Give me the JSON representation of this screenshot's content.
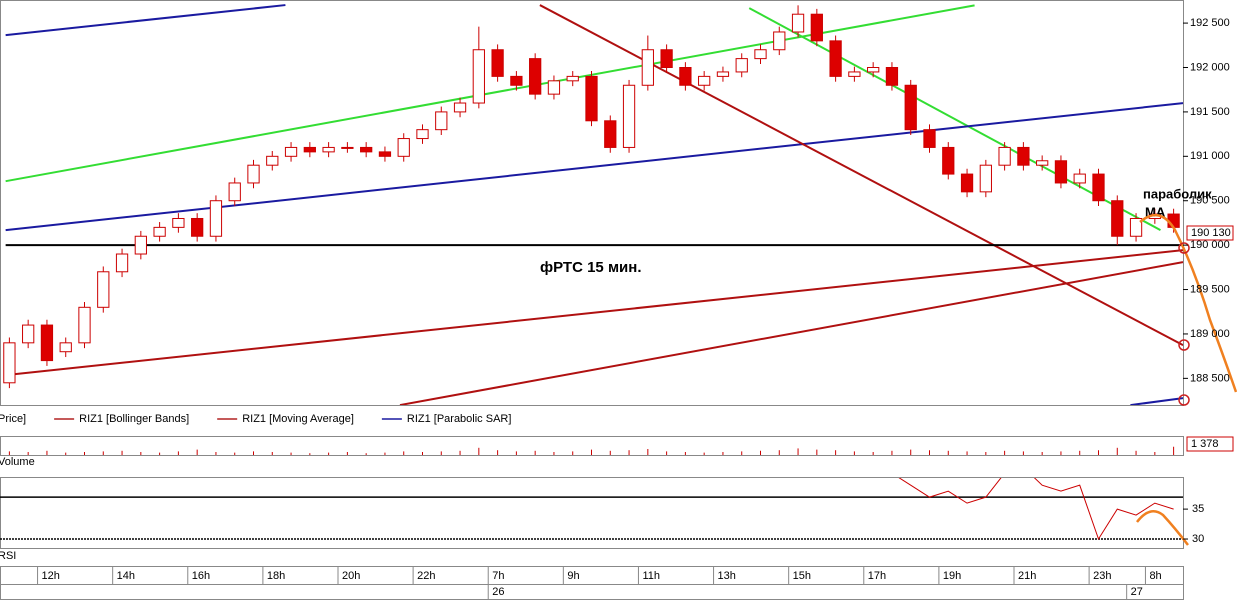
{
  "chart_data": {
    "type": "candlestick",
    "title": "фРТС   15 мин.",
    "annotation": [
      "параболик",
      "MA"
    ],
    "price_label": "190 130",
    "legend": [
      "Price]",
      "RIZ1 [Bollinger Bands]",
      "RIZ1 [Moving Average]",
      "RIZ1 [Parabolic SAR]"
    ],
    "legend_colors": [
      "#000000",
      "#b22222",
      "#b22222",
      "#1a1aa0"
    ],
    "up_color": "#ffffff",
    "down_color": "#dd0000",
    "candle_edge": "#cc0000",
    "categories": [
      null,
      null,
      "12h",
      null,
      null,
      null,
      "14h",
      null,
      null,
      null,
      "16h",
      null,
      null,
      null,
      "18h",
      null,
      null,
      null,
      "20h",
      null,
      null,
      null,
      "22h",
      null,
      null,
      null,
      "7h",
      null,
      null,
      null,
      "9h",
      null,
      null,
      null,
      "11h",
      null,
      null,
      null,
      "13h",
      null,
      null,
      null,
      "15h",
      null,
      null,
      null,
      "17h",
      null,
      null,
      null,
      "19h",
      null,
      null,
      null,
      "21h",
      null,
      null,
      null,
      "23h",
      null,
      null,
      "8h",
      null
    ],
    "dates": [
      {
        "index": 26,
        "label": "26"
      },
      {
        "index": 60,
        "label": "27"
      }
    ],
    "open": [
      188450,
      188900,
      189100,
      188800,
      188900,
      189300,
      189700,
      189900,
      190100,
      190200,
      190300,
      190100,
      190500,
      190700,
      190900,
      191000,
      191100,
      191050,
      191100,
      191100,
      191050,
      191000,
      191200,
      191300,
      191500,
      191600,
      192200,
      191900,
      192100,
      191700,
      191850,
      191900,
      191400,
      191100,
      191800,
      192200,
      192000,
      191800,
      191900,
      191950,
      192100,
      192200,
      192400,
      192600,
      192300,
      191900,
      191950,
      192000,
      191800,
      191300,
      191100,
      190800,
      190600,
      190900,
      191100,
      190900,
      190950,
      190700,
      190800,
      190500,
      190100,
      190300,
      190350
    ],
    "high": [
      188960,
      189160,
      189160,
      188960,
      189360,
      189760,
      189960,
      190160,
      190260,
      190360,
      190360,
      190560,
      190760,
      190960,
      191060,
      191160,
      191160,
      191160,
      191160,
      191160,
      191110,
      191260,
      191360,
      191560,
      191660,
      192460,
      192260,
      191960,
      192160,
      191910,
      191960,
      191960,
      191460,
      191860,
      192360,
      192260,
      192060,
      191960,
      192010,
      192160,
      192260,
      192460,
      192700,
      192660,
      192360,
      192010,
      192060,
      192060,
      191860,
      191360,
      191160,
      190860,
      190960,
      191160,
      191160,
      191010,
      191010,
      190860,
      190860,
      190560,
      190360,
      190410,
      190410
    ],
    "low": [
      188390,
      188840,
      188640,
      188740,
      188840,
      189240,
      189640,
      189840,
      190040,
      190140,
      190040,
      190040,
      190440,
      190640,
      190840,
      190940,
      190990,
      190990,
      191040,
      190990,
      190940,
      190940,
      191140,
      191240,
      191440,
      191540,
      191840,
      191740,
      191640,
      191640,
      191790,
      191340,
      191040,
      191040,
      191740,
      191940,
      191740,
      191740,
      191840,
      191890,
      192040,
      192140,
      192340,
      192240,
      191840,
      191840,
      191890,
      191740,
      191240,
      191040,
      190740,
      190540,
      190540,
      190840,
      190840,
      190840,
      190640,
      190640,
      190440,
      190000,
      190040,
      190240,
      190140
    ],
    "close": [
      188900,
      189100,
      188700,
      188900,
      189300,
      189700,
      189900,
      190100,
      190200,
      190300,
      190100,
      190500,
      190700,
      190900,
      191000,
      191100,
      191050,
      191100,
      191100,
      191050,
      191000,
      191200,
      191300,
      191500,
      191600,
      192200,
      191900,
      191800,
      191700,
      191850,
      191900,
      191400,
      191100,
      191800,
      192200,
      192000,
      191800,
      191900,
      191950,
      192100,
      192200,
      192400,
      192600,
      192300,
      191900,
      191950,
      192000,
      191800,
      191300,
      191100,
      190800,
      190600,
      190900,
      191100,
      190900,
      190950,
      190700,
      190800,
      190500,
      190100,
      190300,
      190350,
      190200
    ],
    "ylim": [
      188200,
      192760
    ],
    "yticks": [
      {
        "value": 188500,
        "label": "188 500"
      },
      {
        "value": 189000,
        "label": "189 000"
      },
      {
        "value": 189500,
        "label": "189 500"
      },
      {
        "value": 190000,
        "label": "190 000"
      },
      {
        "value": 190500,
        "label": "190 500"
      },
      {
        "value": 191000,
        "label": "191 000"
      },
      {
        "value": 191500,
        "label": "191 500"
      },
      {
        "value": 192000,
        "label": "192 000"
      },
      {
        "value": 192500,
        "label": "192 500"
      }
    ],
    "trendlines": [
      {
        "color": "#33dd33",
        "x": [
          -0.2,
          51.4
        ],
        "y": [
          190720,
          192700
        ]
      },
      {
        "color": "#33dd33",
        "x": [
          39.4,
          61.3
        ],
        "y": [
          192669,
          190169
        ]
      },
      {
        "color": "#1a1aa0",
        "x": [
          -0.2,
          14.7
        ],
        "y": [
          192365,
          192703
        ]
      },
      {
        "color": "#1a1aa0",
        "x": [
          -0.2,
          62.5
        ],
        "y": [
          190169,
          191599
        ]
      },
      {
        "color": "#1a1aa0",
        "x": [
          59.7,
          62.5
        ],
        "y": [
          188199,
          188277
        ]
      },
      {
        "color": "#b01010",
        "x": [
          28.25,
          62.5
        ],
        "y": [
          192703,
          188874
        ]
      },
      {
        "color": "#b01010",
        "x": [
          -0.2,
          62.5
        ],
        "y": [
          188536,
          189944
        ]
      },
      {
        "color": "#b01010",
        "x": [
          20.8,
          62.5
        ],
        "y": [
          188199,
          189809
        ]
      },
      {
        "color": "#000000",
        "x": [
          -0.2,
          62.5
        ],
        "y": [
          190000,
          190000
        ]
      }
    ],
    "volume": {
      "name": "Volume",
      "color": "#cc0000",
      "ylim": [
        0,
        3000
      ],
      "value_label": "1 378",
      "values": [
        600,
        500,
        700,
        400,
        500,
        600,
        700,
        500,
        400,
        600,
        900,
        500,
        400,
        600,
        500,
        400,
        300,
        400,
        500,
        300,
        400,
        600,
        500,
        600,
        700,
        1200,
        800,
        600,
        700,
        500,
        600,
        900,
        700,
        800,
        1000,
        600,
        500,
        400,
        500,
        600,
        700,
        800,
        1100,
        900,
        800,
        600,
        500,
        700,
        900,
        800,
        700,
        600,
        500,
        700,
        600,
        500,
        600,
        700,
        800,
        1200,
        700,
        500,
        1378
      ]
    },
    "rsi": {
      "name": "RSI",
      "color": "#cc0000",
      "ylim": [
        28.5,
        40.2
      ],
      "yticks": [
        35,
        30
      ],
      "levels": [
        37,
        30
      ],
      "values": [
        null,
        null,
        null,
        null,
        null,
        null,
        null,
        null,
        null,
        null,
        null,
        null,
        null,
        null,
        null,
        null,
        null,
        null,
        null,
        null,
        null,
        null,
        null,
        null,
        null,
        null,
        null,
        null,
        null,
        null,
        null,
        null,
        null,
        null,
        null,
        null,
        null,
        null,
        null,
        null,
        null,
        null,
        null,
        null,
        null,
        null,
        null,
        41,
        39,
        37,
        38,
        36,
        37,
        41,
        42,
        39,
        38,
        39,
        30,
        35,
        34,
        36,
        35
      ]
    }
  }
}
